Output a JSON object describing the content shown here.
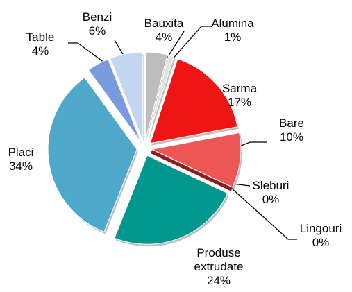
{
  "chart_data": {
    "type": "pie",
    "categories": [
      "Bauxita",
      "Alumina",
      "Sarma",
      "Bare",
      "Sleburi",
      "Lingouri",
      "Produse extrudate",
      "Placi",
      "Table",
      "Benzi"
    ],
    "values": [
      4,
      1,
      17,
      10,
      0,
      0,
      24,
      34,
      4,
      6
    ],
    "value_labels": [
      "4%",
      "1%",
      "17%",
      "10%",
      "0%",
      "0%",
      "24%",
      "34%",
      "4%",
      "6%"
    ],
    "colors": [
      "#bdbdbd",
      "#e2e2e2",
      "#ee1515",
      "#ee5656",
      "#8c8c10",
      "#8b1e1e",
      "#00978f",
      "#4ea8c9",
      "#7a9ae0",
      "#c2d6f0"
    ]
  }
}
